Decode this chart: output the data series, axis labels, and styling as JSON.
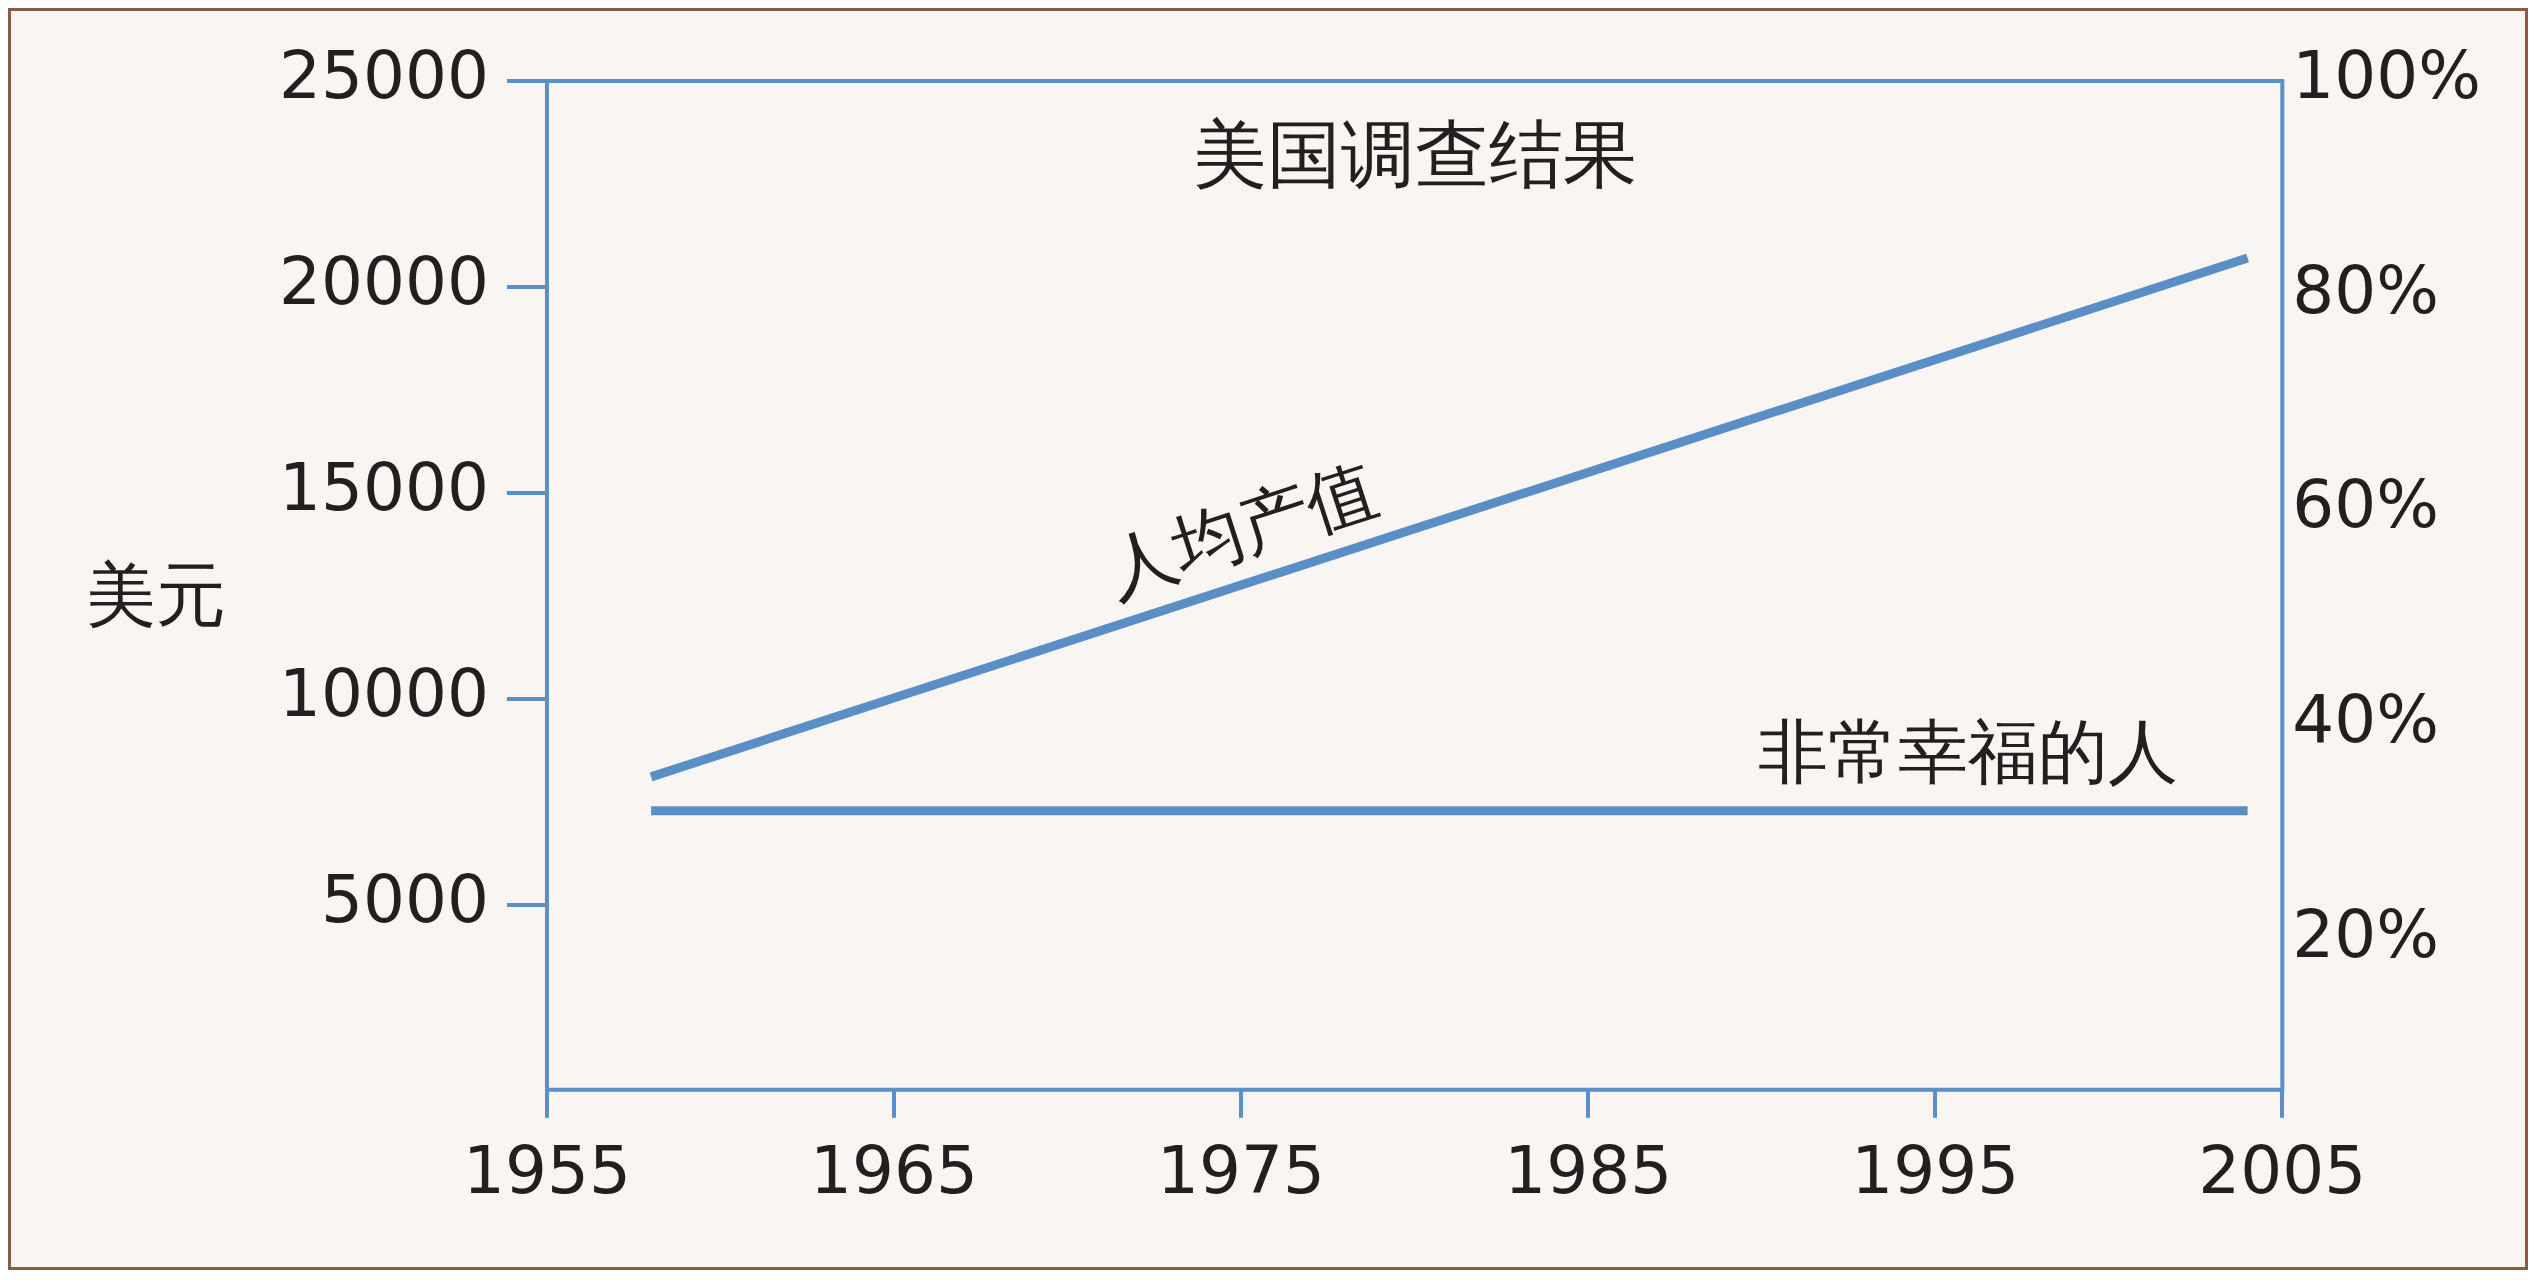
{
  "chart_data": {
    "type": "line",
    "title": "美国调查结果",
    "ylabel": "美元",
    "x": [
      1958,
      2004
    ],
    "series": [
      {
        "name": "人均产值",
        "color": "#5a8fc6",
        "values": [
          8100,
          20700
        ]
      },
      {
        "name": "非常幸福的人",
        "color": "#5a8fc6",
        "values": [
          32,
          32
        ],
        "axis": "y2"
      }
    ],
    "xlim": [
      1955,
      2005
    ],
    "xticks": [
      1955,
      1965,
      1975,
      1985,
      1995,
      2005
    ],
    "ylim": [
      500,
      25000
    ],
    "yticks": [
      5000,
      10000,
      15000,
      20000,
      25000
    ],
    "y2lim": [
      6,
      100
    ],
    "y2ticks": [
      {
        "value": 20,
        "label": "20%"
      },
      {
        "value": 40,
        "label": "40%"
      },
      {
        "value": 60,
        "label": "60%"
      },
      {
        "value": 80,
        "label": "80%"
      },
      {
        "value": 100,
        "label": "100%"
      }
    ],
    "grid": false,
    "legend": false,
    "marker": "none",
    "line_style": "solid"
  }
}
